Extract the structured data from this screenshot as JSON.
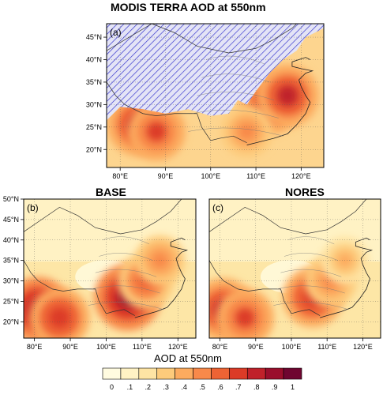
{
  "figure": {
    "panels": [
      {
        "id": "a",
        "label": "(a)",
        "title": "MODIS TERRA AOD at 550nm"
      },
      {
        "id": "b",
        "label": "(b)",
        "title": "BASE"
      },
      {
        "id": "c",
        "label": "(c)",
        "title": "NORES"
      }
    ],
    "colorbar": {
      "title": "AOD at 550nm"
    }
  },
  "chart_data": [
    {
      "type": "heatmap",
      "title": "MODIS TERRA AOD at 550nm",
      "panel_label": "(a)",
      "x_ticks": [
        "80°E",
        "90°E",
        "100°E",
        "110°E",
        "120°E"
      ],
      "y_ticks": [
        "20°N",
        "25°N",
        "30°N",
        "35°N",
        "40°N",
        "45°N"
      ],
      "xlim": [
        77,
        125
      ],
      "ylim": [
        16,
        48
      ],
      "missing_data": "hatched",
      "hotspots": [
        {
          "lon": 84,
          "lat": 25.5,
          "aod": 0.8
        },
        {
          "lon": 88,
          "lat": 24,
          "aod": 0.7
        },
        {
          "lon": 113,
          "lat": 30,
          "aod": 0.75
        },
        {
          "lon": 117,
          "lat": 32,
          "aod": 0.8
        },
        {
          "lon": 108,
          "lat": 24,
          "aod": 0.55
        }
      ]
    },
    {
      "type": "heatmap",
      "title": "BASE",
      "panel_label": "(b)",
      "x_ticks": [
        "80°E",
        "90°E",
        "100°E",
        "110°E",
        "120°E"
      ],
      "y_ticks": [
        "20°N",
        "25°N",
        "30°N",
        "35°N",
        "40°N",
        "45°N",
        "50°N"
      ],
      "xlim": [
        77,
        125
      ],
      "ylim": [
        16,
        50
      ],
      "hotspots": [
        {
          "lon": 81,
          "lat": 23,
          "aod": 0.85
        },
        {
          "lon": 87,
          "lat": 21,
          "aod": 0.75
        },
        {
          "lon": 106,
          "lat": 26,
          "aod": 0.9
        },
        {
          "lon": 111,
          "lat": 30,
          "aod": 0.65
        },
        {
          "lon": 115,
          "lat": 35,
          "aod": 0.5
        }
      ]
    },
    {
      "type": "heatmap",
      "title": "NORES",
      "panel_label": "(c)",
      "x_ticks": [
        "80°E",
        "90°E",
        "100°E",
        "110°E",
        "120°E"
      ],
      "xlim": [
        77,
        125
      ],
      "ylim": [
        16,
        50
      ],
      "hotspots": [
        {
          "lon": 81,
          "lat": 23,
          "aod": 0.8
        },
        {
          "lon": 87,
          "lat": 21,
          "aod": 0.7
        },
        {
          "lon": 106,
          "lat": 26,
          "aod": 0.75
        },
        {
          "lon": 111,
          "lat": 30,
          "aod": 0.55
        },
        {
          "lon": 115,
          "lat": 35,
          "aod": 0.45
        }
      ]
    }
  ],
  "colorbar": {
    "title": "AOD at 550nm",
    "labels": [
      "0",
      ".1",
      ".2",
      ".3",
      ".4",
      ".5",
      ".6",
      ".7",
      ".8",
      ".9",
      "1"
    ],
    "colors": [
      "#fffbe0",
      "#fff2c4",
      "#fee4a4",
      "#fdcb7b",
      "#fcab5f",
      "#f8894a",
      "#ee6334",
      "#dc3b27",
      "#c0212a",
      "#9a0e2c",
      "#6f0530"
    ]
  }
}
